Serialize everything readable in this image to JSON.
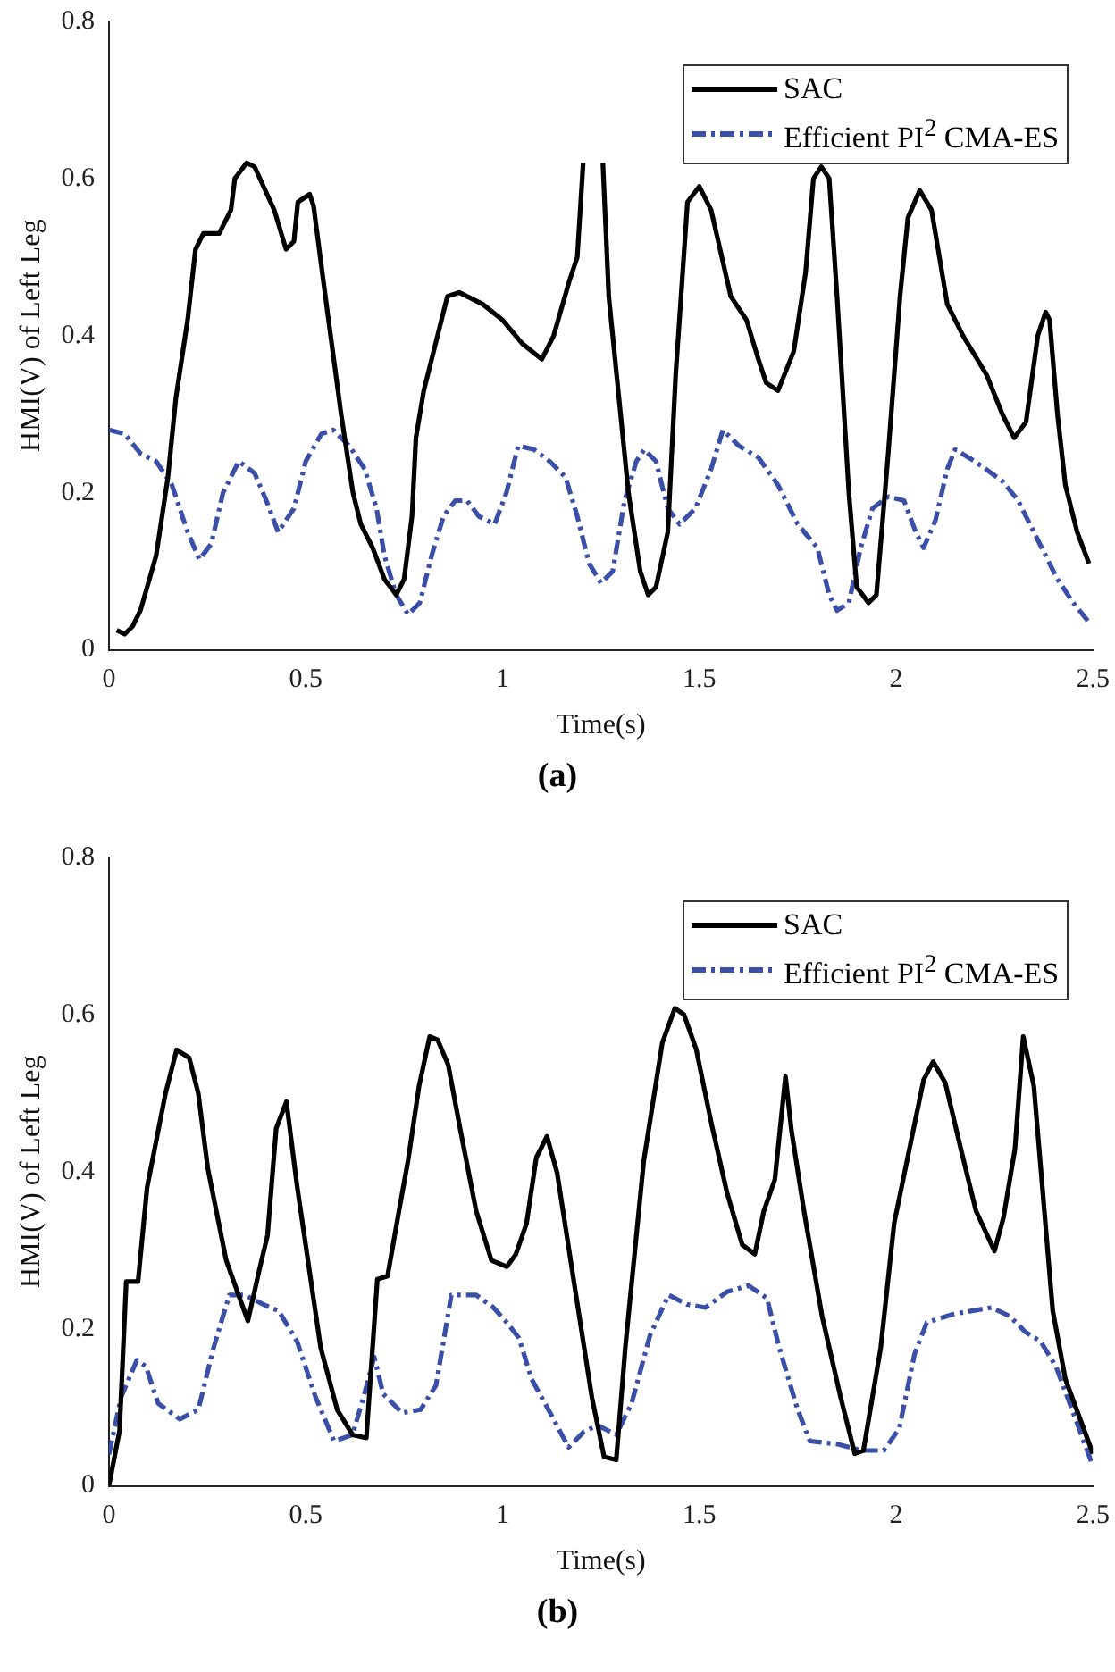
{
  "chart_data": [
    {
      "type": "line",
      "title": "(a)",
      "xlabel": "Time(s)",
      "ylabel": "HMI(V) of Left Leg",
      "xlim": [
        0,
        2.5
      ],
      "xticks": [
        0,
        0.5,
        1,
        1.5,
        2,
        2.5
      ],
      "ylim": [
        0,
        0.8
      ],
      "yticks": [
        0,
        0.2,
        0.4,
        0.6,
        0.8
      ],
      "grid": false,
      "legend": "top right",
      "marker": "none",
      "series": [
        {
          "name": "SAC",
          "color": "#000000",
          "line_style": "solid",
          "x": [
            0.02,
            0.04,
            0.06,
            0.08,
            0.12,
            0.15,
            0.17,
            0.2,
            0.22,
            0.24,
            0.28,
            0.31,
            0.32,
            0.35,
            0.37,
            0.42,
            0.45,
            0.47,
            0.48,
            0.51,
            0.52,
            0.55,
            0.59,
            0.62,
            0.64,
            0.67,
            0.7,
            0.73,
            0.75,
            0.77,
            0.78,
            0.8,
            0.83,
            0.86,
            0.89,
            0.95,
            1.0,
            1.05,
            1.1,
            1.13,
            1.17,
            1.19,
            1.205,
            1.235,
            1.255,
            1.27,
            1.3,
            1.32,
            1.35,
            1.37,
            1.39,
            1.42,
            1.44,
            1.47,
            1.5,
            1.53,
            1.58,
            1.62,
            1.65,
            1.67,
            1.7,
            1.74,
            1.77,
            1.79,
            1.81,
            1.83,
            1.85,
            1.88,
            1.9,
            1.93,
            1.95,
            1.98,
            2.01,
            2.03,
            2.06,
            2.09,
            2.13,
            2.17,
            2.23,
            2.27,
            2.3,
            2.33,
            2.36,
            2.38,
            2.39,
            2.41,
            2.43,
            2.46,
            2.49
          ],
          "values": [
            0.025,
            0.02,
            0.03,
            0.05,
            0.12,
            0.22,
            0.32,
            0.42,
            0.51,
            0.53,
            0.53,
            0.56,
            0.6,
            0.62,
            0.615,
            0.56,
            0.51,
            0.52,
            0.57,
            0.58,
            0.565,
            0.45,
            0.3,
            0.2,
            0.16,
            0.13,
            0.09,
            0.07,
            0.09,
            0.17,
            0.27,
            0.33,
            0.39,
            0.45,
            0.455,
            0.44,
            0.42,
            0.39,
            0.37,
            0.4,
            0.47,
            0.5,
            0.62,
            null,
            0.62,
            0.45,
            0.3,
            0.2,
            0.1,
            0.07,
            0.08,
            0.15,
            0.35,
            0.57,
            0.59,
            0.56,
            0.45,
            0.42,
            0.37,
            0.34,
            0.33,
            0.38,
            0.48,
            0.6,
            0.615,
            0.6,
            0.45,
            0.2,
            0.08,
            0.06,
            0.07,
            0.25,
            0.45,
            0.55,
            0.585,
            0.56,
            0.44,
            0.4,
            0.35,
            0.3,
            0.27,
            0.29,
            0.4,
            0.43,
            0.42,
            0.3,
            0.21,
            0.15,
            0.11
          ]
        },
        {
          "name": "Efficient PI$^{2}$ CMA-ES",
          "color": "#3a4fa8",
          "line_style": "dashed",
          "x": [
            0,
            0.04,
            0.08,
            0.12,
            0.16,
            0.2,
            0.23,
            0.26,
            0.29,
            0.33,
            0.37,
            0.4,
            0.43,
            0.47,
            0.5,
            0.54,
            0.57,
            0.61,
            0.65,
            0.68,
            0.7,
            0.73,
            0.76,
            0.79,
            0.82,
            0.85,
            0.88,
            0.91,
            0.94,
            0.98,
            1.01,
            1.04,
            1.08,
            1.12,
            1.16,
            1.19,
            1.22,
            1.25,
            1.28,
            1.31,
            1.34,
            1.36,
            1.39,
            1.42,
            1.45,
            1.49,
            1.53,
            1.56,
            1.6,
            1.65,
            1.7,
            1.75,
            1.8,
            1.83,
            1.85,
            1.88,
            1.91,
            1.94,
            1.98,
            2.02,
            2.05,
            2.07,
            2.1,
            2.13,
            2.15,
            2.2,
            2.27,
            2.31,
            2.36,
            2.41,
            2.45,
            2.49
          ],
          "values": [
            0.28,
            0.275,
            0.25,
            0.24,
            0.21,
            0.15,
            0.115,
            0.135,
            0.2,
            0.24,
            0.225,
            0.19,
            0.15,
            0.18,
            0.24,
            0.275,
            0.28,
            0.26,
            0.23,
            0.18,
            0.12,
            0.07,
            0.045,
            0.06,
            0.12,
            0.17,
            0.19,
            0.19,
            0.17,
            0.16,
            0.2,
            0.26,
            0.255,
            0.24,
            0.22,
            0.17,
            0.11,
            0.085,
            0.1,
            0.19,
            0.24,
            0.255,
            0.24,
            0.18,
            0.16,
            0.18,
            0.23,
            0.28,
            0.26,
            0.245,
            0.21,
            0.16,
            0.13,
            0.07,
            0.05,
            0.06,
            0.13,
            0.18,
            0.195,
            0.19,
            0.15,
            0.13,
            0.165,
            0.23,
            0.255,
            0.24,
            0.215,
            0.19,
            0.14,
            0.09,
            0.06,
            0.035
          ]
        }
      ]
    },
    {
      "type": "line",
      "title": "(b)",
      "xlabel": "Time(s)",
      "ylabel": "HMI(V) of Left Leg",
      "xlim": [
        0,
        2.5
      ],
      "xticks": [
        0,
        0.5,
        1,
        1.5,
        2,
        2.5
      ],
      "ylim": [
        0,
        0.8
      ],
      "yticks": [
        0,
        0.2,
        0.4,
        0.6,
        0.8
      ],
      "grid": false,
      "legend": "top right",
      "marker": "none",
      "series": [
        {
          "name": "SAC",
          "color": "#000000",
          "line_style": "solid",
          "x": [
            0,
            0.027,
            0.044,
            0.074,
            0.097,
            0.144,
            0.172,
            0.204,
            0.227,
            0.251,
            0.298,
            0.353,
            0.384,
            0.403,
            0.425,
            0.451,
            0.478,
            0.538,
            0.58,
            0.619,
            0.654,
            0.682,
            0.708,
            0.737,
            0.76,
            0.788,
            0.815,
            0.835,
            0.862,
            0.893,
            0.933,
            0.972,
            1.011,
            1.034,
            1.061,
            1.086,
            1.113,
            1.139,
            1.183,
            1.227,
            1.258,
            1.289,
            1.312,
            1.359,
            1.406,
            1.438,
            1.461,
            1.492,
            1.531,
            1.57,
            1.609,
            1.641,
            1.664,
            1.692,
            1.719,
            1.734,
            1.766,
            1.812,
            1.859,
            1.895,
            1.917,
            1.961,
            1.995,
            2.031,
            2.07,
            2.094,
            2.125,
            2.164,
            2.203,
            2.25,
            2.273,
            2.302,
            2.323,
            2.35,
            2.398,
            2.43,
            2.5
          ],
          "values": [
            0,
            0.07,
            0.26,
            0.26,
            0.38,
            0.5,
            0.555,
            0.545,
            0.5,
            0.405,
            0.287,
            0.21,
            0.279,
            0.319,
            0.455,
            0.489,
            0.382,
            0.176,
            0.097,
            0.065,
            0.061,
            0.263,
            0.267,
            0.35,
            0.414,
            0.509,
            0.572,
            0.568,
            0.536,
            0.453,
            0.35,
            0.287,
            0.279,
            0.295,
            0.334,
            0.418,
            0.445,
            0.398,
            0.255,
            0.113,
            0.037,
            0.033,
            0.176,
            0.414,
            0.564,
            0.608,
            0.6,
            0.556,
            0.461,
            0.374,
            0.307,
            0.295,
            0.35,
            0.39,
            0.521,
            0.453,
            0.35,
            0.216,
            0.113,
            0.041,
            0.045,
            0.176,
            0.334,
            0.422,
            0.517,
            0.54,
            0.513,
            0.43,
            0.35,
            0.299,
            0.342,
            0.429,
            0.572,
            0.509,
            0.223,
            0.136,
            0.041
          ]
        },
        {
          "name": "Efficient PI$^{2}$ CMA-ES",
          "color": "#3a4fa8",
          "line_style": "dashed",
          "x": [
            0,
            0.031,
            0.071,
            0.094,
            0.125,
            0.18,
            0.227,
            0.266,
            0.306,
            0.345,
            0.392,
            0.431,
            0.478,
            0.525,
            0.572,
            0.619,
            0.647,
            0.674,
            0.697,
            0.745,
            0.792,
            0.831,
            0.87,
            0.933,
            0.977,
            1.011,
            1.042,
            1.074,
            1.121,
            1.168,
            1.207,
            1.242,
            1.289,
            1.328,
            1.375,
            1.422,
            1.469,
            1.516,
            1.57,
            1.625,
            1.672,
            1.703,
            1.75,
            1.781,
            1.852,
            1.914,
            1.969,
            2.008,
            2.047,
            2.078,
            2.148,
            2.242,
            2.289,
            2.328,
            2.367,
            2.406,
            2.453,
            2.5
          ],
          "values": [
            0.04,
            0.113,
            0.16,
            0.152,
            0.105,
            0.085,
            0.097,
            0.176,
            0.243,
            0.243,
            0.231,
            0.223,
            0.184,
            0.113,
            0.057,
            0.065,
            0.113,
            0.164,
            0.117,
            0.093,
            0.097,
            0.128,
            0.243,
            0.243,
            0.227,
            0.208,
            0.188,
            0.136,
            0.093,
            0.049,
            0.069,
            0.077,
            0.065,
            0.105,
            0.192,
            0.243,
            0.231,
            0.227,
            0.247,
            0.255,
            0.239,
            0.176,
            0.097,
            0.057,
            0.053,
            0.045,
            0.045,
            0.073,
            0.168,
            0.208,
            0.219,
            0.227,
            0.216,
            0.196,
            0.184,
            0.152,
            0.089,
            0.025
          ]
        }
      ]
    }
  ]
}
